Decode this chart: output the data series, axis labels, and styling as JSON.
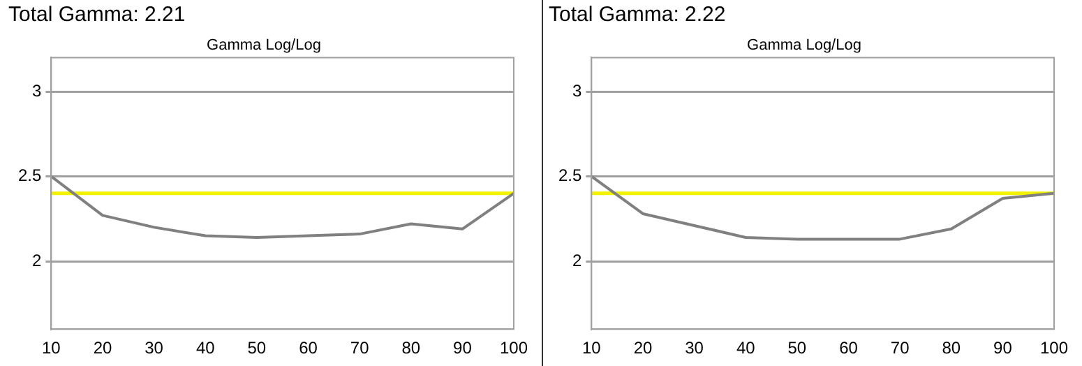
{
  "chart_data": [
    {
      "type": "line",
      "title": "Total Gamma: 2.21",
      "subtitle": "Gamma Log/Log",
      "x": [
        10,
        20,
        30,
        40,
        50,
        60,
        70,
        80,
        90,
        100
      ],
      "series": [
        {
          "color": "#808080",
          "values": [
            2.5,
            2.27,
            2.2,
            2.15,
            2.14,
            2.15,
            2.16,
            2.22,
            2.19,
            2.4
          ]
        }
      ],
      "ref_lines": [
        {
          "axis": "y",
          "value": 2.4,
          "color": "#f2f200"
        }
      ],
      "xlim": [
        10,
        100
      ],
      "xticks": [
        10,
        20,
        30,
        40,
        50,
        60,
        70,
        80,
        90,
        100
      ],
      "ylim": [
        1.6,
        3.2
      ],
      "yticks": [
        2,
        2.5,
        3
      ],
      "grid": "y"
    },
    {
      "type": "line",
      "title": "Total Gamma: 2.22",
      "subtitle": "Gamma Log/Log",
      "x": [
        10,
        20,
        30,
        40,
        50,
        60,
        70,
        80,
        90,
        100
      ],
      "series": [
        {
          "color": "#808080",
          "values": [
            2.5,
            2.28,
            2.21,
            2.14,
            2.13,
            2.13,
            2.13,
            2.19,
            2.37,
            2.4
          ]
        }
      ],
      "ref_lines": [
        {
          "axis": "y",
          "value": 2.4,
          "color": "#f2f200"
        }
      ],
      "xlim": [
        10,
        100
      ],
      "xticks": [
        10,
        20,
        30,
        40,
        50,
        60,
        70,
        80,
        90,
        100
      ],
      "ylim": [
        1.6,
        3.2
      ],
      "yticks": [
        2,
        2.5,
        3
      ],
      "grid": "y"
    }
  ]
}
